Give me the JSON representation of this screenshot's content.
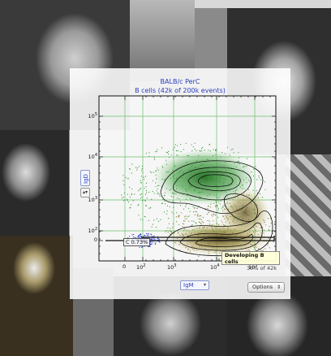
{
  "collage": {
    "tiles": [
      "photo-top-left",
      "photo-top-center",
      "photo-top-right",
      "photo-mid-left",
      "photo-bottom-left",
      "photo-right-edge",
      "photo-bottom-center",
      "photo-bottom-right"
    ]
  },
  "plot": {
    "title_line1": "BALB/c PerC",
    "title_line2": "B cells (42k of 200k events)",
    "y_axis_label": "IgD",
    "x_axis_label": "IgM",
    "y_ticks": [
      "10^5",
      "10^4",
      "10^3",
      "10^2",
      "0"
    ],
    "x_ticks": [
      "0",
      "10^2",
      "10^3",
      "10^4",
      "10^5"
    ],
    "gate_small_label": "C 0.73%",
    "gate_main_title": "Developing B cells",
    "gate_main_count": "30% of 42k",
    "options_label": "Options",
    "colors": {
      "title": "#2b3fbf",
      "contour": "#111111",
      "green_population": "#2f8a2f",
      "brown_population": "#8a7a30",
      "blue_population": "#2030c0",
      "gridline": "#6cc06c"
    }
  }
}
